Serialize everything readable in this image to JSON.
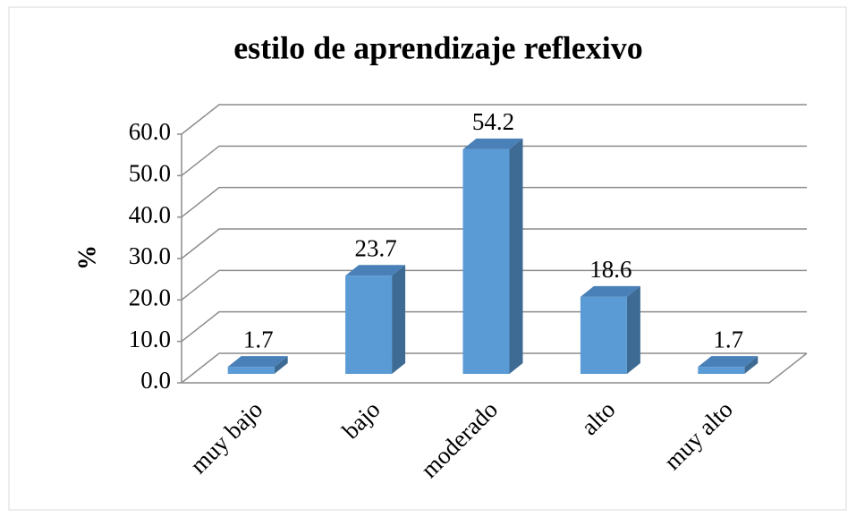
{
  "chart_data": {
    "type": "bar3d",
    "title": "estilo de aprendizaje reflexivo",
    "y_label": "%",
    "categories": [
      "muy bajo",
      "bajo",
      "moderado",
      "alto",
      "muy alto"
    ],
    "values": [
      1.7,
      23.7,
      54.2,
      18.6,
      1.7
    ],
    "color": "#5b9bd5",
    "ylim": [
      0,
      60
    ],
    "yticks": [
      {
        "value": 0,
        "label": "0.0"
      },
      {
        "value": 10,
        "label": "10.0"
      },
      {
        "value": 20,
        "label": "20.0"
      },
      {
        "value": 30,
        "label": "30.0"
      },
      {
        "value": 40,
        "label": "40.0"
      },
      {
        "value": 50,
        "label": "50.0"
      },
      {
        "value": 60,
        "label": "60.0"
      }
    ],
    "grid": true
  }
}
